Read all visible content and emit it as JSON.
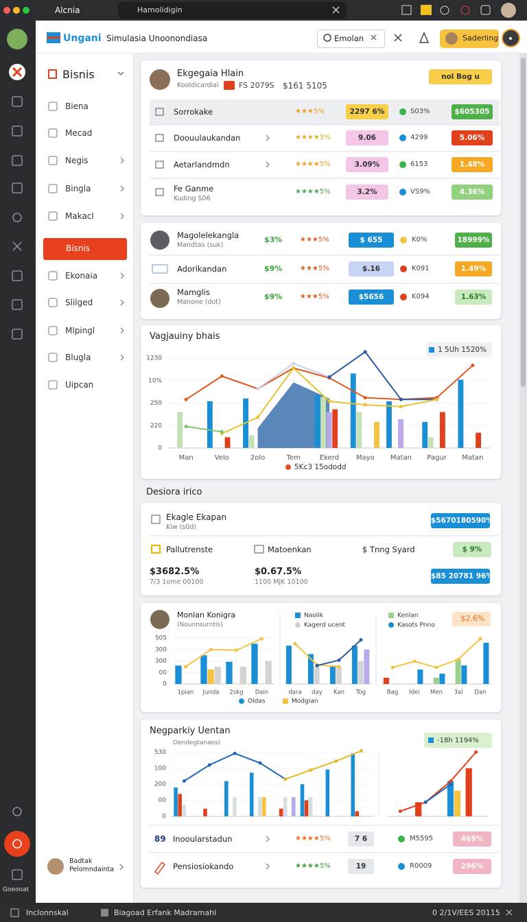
{
  "browser": {
    "tab_left": "Alcnia",
    "tab": "Hamolidigin"
  },
  "app_header": {
    "logo": "Ungani",
    "title": "Simulasia Unoonondiasa",
    "search": "Emolan",
    "button": "Saderling"
  },
  "rail": {
    "bottom_label": "Goeooat"
  },
  "sidebar": {
    "title": "Bisnis",
    "items": [
      "Biena",
      "Mecad",
      "Negis",
      "Bingla",
      "Makacl",
      "Bisnis",
      "Ekonaia",
      "Slilged",
      "Mlpingl",
      "Blugla",
      "Uipcan"
    ],
    "active_index": 5,
    "user": {
      "name": "Badtak",
      "role": "Pelomndainta"
    }
  },
  "card1": {
    "name": "Ekgegaia Hlain",
    "sub": "Kooldicardial",
    "tag": "FS 2079S",
    "amount": "$161 5105",
    "badge": "nol Bog u",
    "rows": [
      {
        "name": "Sorrokake",
        "rating": "★★★5%",
        "badge": "2297 6%",
        "status": "S03%",
        "value": "$605305"
      },
      {
        "name": "Doouulaukandan",
        "rating": "★★★★5%",
        "badge": "9.06",
        "status": "4299",
        "value": "5.06%"
      },
      {
        "name": "Aetarlandmdn",
        "rating": "★★★★5%",
        "badge": "3.09%",
        "status": "6153",
        "value": "1.48%"
      },
      {
        "name": "Fe Ganme",
        "sub": "Kuding S06",
        "rating": "★★★★5%",
        "badge": "3.2%",
        "status": "VS9%",
        "value": "4.36%"
      }
    ]
  },
  "card2": {
    "rows": [
      {
        "name": "Magolelekangla",
        "sub": "Mandtas (suk)",
        "change": "$3%",
        "rating": "★★★5%",
        "badge": "$ 655",
        "status": "K0%",
        "value": "18999%"
      },
      {
        "name": "Adorikandan",
        "change": "$9%",
        "rating": "★★★5%",
        "badge": "$.16",
        "status": "K091",
        "value": "1.49%"
      },
      {
        "name": "Mamglis",
        "sub": "Manone (dot)",
        "change": "$9%",
        "rating": "★★★5%",
        "badge": "$5656",
        "status": "K094",
        "value": "1.63%"
      }
    ]
  },
  "section_title": "Desiora irico",
  "card4": {
    "name": "Ekagle Ekapan",
    "sub": "Kiw (s0d)",
    "badge": "$5670180590%",
    "items": [
      "Pallutrenste",
      "Matoenkan",
      "$ Tnng Syard"
    ],
    "items_badge": "$ 9%",
    "stats": [
      {
        "value": "$3682.5%",
        "sub": "7/3 1ome 00100"
      },
      {
        "value": "$0.67.5%",
        "sub": "1100 MJK 10100"
      }
    ],
    "stats_badge": "$85 20781 96%"
  },
  "card5": {
    "title": "Monlan Konigra",
    "sub": "(Nounnsurntis)",
    "badge": "$2.6%"
  },
  "card6": {
    "title": "Negparkiy Uentan",
    "sub": "Oendegtanaos)",
    "rows": [
      {
        "icon": "89",
        "name": "Inooularstadun",
        "rating": "★★★★5%",
        "badge": "7 6",
        "status": "M5595",
        "value": "469%"
      },
      {
        "name": "Pensiosiokando",
        "rating": "★★★★5%",
        "badge": "19",
        "status": "R0009",
        "value": "296%"
      }
    ]
  },
  "footer": {
    "left": "Inclonnskal",
    "center": "Biagoad Erfank Madramahl",
    "right": "0 2/1V/EES 20115"
  },
  "chart_data": [
    {
      "type": "bar",
      "title": "Vagjauiny bhais",
      "categories": [
        "Man",
        "Velo",
        "2olo",
        "Tem",
        "Ekerd",
        "Mayo",
        "Matan",
        "Pagur",
        "Matan"
      ],
      "ylim": [
        0,
        110
      ],
      "yticks": [
        0,
        {
          "value": 25,
          "label": "220"
        },
        {
          "value": 50,
          "label": "250"
        },
        {
          "value": 75,
          "label": "10%"
        },
        {
          "value": 100,
          "label": "1230"
        }
      ],
      "grid": true,
      "series": [
        {
          "type": "area",
          "color": "#3d72ad",
          "values": [
            null,
            null,
            22,
            73,
            55,
            null,
            null,
            null,
            null
          ]
        },
        {
          "type": "bar",
          "name": "1 5Uh 1520%",
          "color": "#1a8fd6",
          "values": [
            null,
            52,
            55,
            null,
            59,
            83,
            52,
            29,
            76
          ]
        },
        {
          "type": "bar",
          "color": "#c5e0b4",
          "values": [
            40,
            null,
            14,
            null,
            57,
            40,
            null,
            12,
            null
          ]
        },
        {
          "type": "bar",
          "color": "#b9a9e8",
          "values": [
            null,
            null,
            null,
            null,
            40,
            null,
            32,
            null,
            null
          ]
        },
        {
          "type": "bar",
          "color": "#e0401c",
          "values": [
            null,
            12,
            null,
            null,
            43,
            null,
            null,
            40,
            17
          ]
        },
        {
          "type": "bar",
          "color": "#f5c242",
          "values": [
            null,
            null,
            null,
            null,
            null,
            29,
            null,
            null,
            null
          ]
        },
        {
          "type": "line",
          "name": "5Kc3 15ododd",
          "color": "#e0561c",
          "values": [
            54,
            80,
            66,
            89,
            78,
            56,
            54,
            56,
            92
          ]
        },
        {
          "type": "line",
          "color": "#c9d3ea",
          "values": [
            null,
            null,
            66,
            94,
            79,
            null,
            null,
            null,
            null
          ]
        },
        {
          "type": "line",
          "color": "#2b5aa0",
          "values": [
            null,
            null,
            null,
            null,
            79,
            107,
            54,
            54,
            null
          ]
        },
        {
          "type": "line",
          "color": "#e8c233",
          "values": [
            null,
            16,
            34,
            89,
            52,
            48,
            46,
            54,
            null
          ]
        },
        {
          "type": "line",
          "color": "#7cc26c",
          "values": [
            24,
            18,
            null,
            null,
            null,
            null,
            null,
            null,
            null
          ]
        }
      ]
    },
    {
      "type": "bar",
      "categories": [
        "1pian",
        "Junda",
        "2skg",
        "Dain"
      ],
      "ylim": [
        0,
        120
      ],
      "yticks": [
        0,
        {
          "value": 30,
          "label": "00"
        },
        {
          "value": 60,
          "label": "300"
        },
        {
          "value": 90,
          "label": "300"
        },
        {
          "value": 120,
          "label": "505"
        }
      ],
      "grid": true,
      "series": [
        {
          "type": "bar",
          "name": "Oldas",
          "color": "#1a8fd6",
          "values": [
            48,
            75,
            58,
            105
          ]
        },
        {
          "type": "bar",
          "color": "#f5c242",
          "values": [
            null,
            38,
            null,
            null
          ]
        },
        {
          "type": "bar",
          "color": "#d3d3d3",
          "values": [
            null,
            45,
            45,
            60
          ]
        },
        {
          "type": "line",
          "color": "#f5c242",
          "values": [
            45,
            90,
            88,
            118
          ]
        }
      ]
    },
    {
      "type": "bar",
      "categories": [
        "dara",
        "day",
        "Kan",
        "Tog"
      ],
      "ylim": [
        0,
        120
      ],
      "series": [
        {
          "type": "bar",
          "name": "Naolik",
          "color": "#1a8fd6",
          "values": [
            100,
            78,
            48,
            100
          ]
        },
        {
          "type": "bar",
          "name": "Kagerd ucent",
          "color": "#d3d3d3",
          "values": [
            null,
            45,
            45,
            60
          ]
        },
        {
          "type": "bar",
          "color": "#b9a9e8",
          "values": [
            null,
            null,
            null,
            90
          ]
        },
        {
          "type": "line",
          "name": "Modgian",
          "color": "#f5c242",
          "values": [
            105,
            50,
            45,
            null
          ]
        },
        {
          "type": "line",
          "color": "#2b5aa0",
          "values": [
            null,
            48,
            62,
            115
          ]
        }
      ]
    },
    {
      "type": "bar",
      "categories": [
        "Bag",
        "Idei",
        "Men",
        "3al",
        "Dan"
      ],
      "ylim": [
        0,
        120
      ],
      "series": [
        {
          "type": "bar",
          "color": "#e0401c",
          "values": [
            15,
            null,
            null,
            null,
            null
          ]
        },
        {
          "type": "bar",
          "name": "Kenlan",
          "color": "#9ccf8b",
          "values": [
            null,
            null,
            15,
            60,
            null
          ]
        },
        {
          "type": "bar",
          "name": "Kasots Pnno",
          "color": "#1a8fd6",
          "values": [
            null,
            35,
            25,
            45,
            100
          ]
        },
        {
          "type": "line",
          "color": "#f5c242",
          "values": [
            40,
            55,
            40,
            60,
            110
          ]
        }
      ]
    },
    {
      "type": "bar",
      "categories": [
        null,
        null,
        null,
        null,
        null,
        null,
        null,
        null
      ],
      "ylim": [
        0,
        110
      ],
      "yticks": [
        0,
        {
          "value": 25,
          "label": "00"
        },
        {
          "value": 50,
          "label": "200"
        },
        {
          "value": 75,
          "label": "100"
        },
        {
          "value": 100,
          "label": "530"
        }
      ],
      "grid": true,
      "series": [
        {
          "type": "bar",
          "name": "-18h 1194%",
          "color": "#1a8fd6",
          "values": [
            45,
            null,
            55,
            68,
            null,
            50,
            73,
            98
          ]
        },
        {
          "type": "bar",
          "color": "#e0401c",
          "values": [
            35,
            12,
            null,
            null,
            12,
            25,
            null,
            8
          ]
        },
        {
          "type": "bar",
          "color": "#d6dde0",
          "values": [
            18,
            null,
            30,
            30,
            30,
            30,
            null,
            null
          ]
        },
        {
          "type": "bar",
          "color": "#f5c242",
          "values": [
            null,
            null,
            null,
            30,
            null,
            null,
            null,
            null
          ]
        },
        {
          "type": "bar",
          "color": "#b9a9e8",
          "values": [
            null,
            null,
            null,
            null,
            30,
            null,
            null,
            null
          ]
        },
        {
          "type": "line",
          "color": "#1e66b8",
          "values": [
            55,
            80,
            98,
            83,
            58,
            null,
            null,
            null
          ]
        },
        {
          "type": "line",
          "color": "#e8b82a",
          "values": [
            null,
            null,
            null,
            null,
            58,
            72,
            86,
            102
          ]
        }
      ]
    },
    {
      "type": "bar",
      "categories": [
        null,
        null,
        null,
        null
      ],
      "ylim": [
        0,
        110
      ],
      "series": [
        {
          "type": "bar",
          "color": "#e0401c",
          "values": [
            null,
            22,
            null,
            75
          ]
        },
        {
          "type": "bar",
          "color": "#1a8fd6",
          "values": [
            null,
            null,
            55,
            null
          ]
        },
        {
          "type": "bar",
          "color": "#f5c242",
          "values": [
            null,
            null,
            40,
            null
          ]
        },
        {
          "type": "line",
          "color": "#e0401c",
          "values": [
            8,
            22,
            55,
            100
          ]
        },
        {
          "type": "line",
          "color": "#1e66b8",
          "values": [
            null,
            22,
            50,
            null
          ]
        }
      ]
    }
  ]
}
